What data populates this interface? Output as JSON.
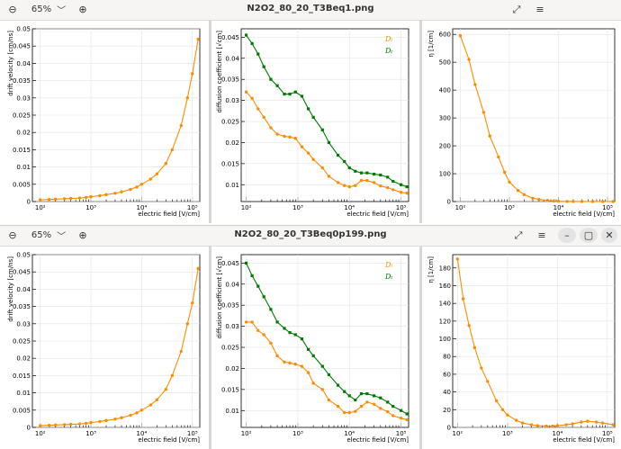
{
  "windows": [
    {
      "title": "N2O2_80_20_T3Beq1.png",
      "zoom": "65%",
      "controls": [
        "zoom-out",
        "zoom-in",
        "fullscreen",
        "menu"
      ]
    },
    {
      "title": "N2O2_80_20_T3Beq0p199.png",
      "zoom": "65%",
      "controls": [
        "zoom-out",
        "zoom-in",
        "fullscreen",
        "menu",
        "minimize",
        "maximize",
        "close"
      ]
    }
  ],
  "icons": {
    "zoom_out": "⊖",
    "zoom_in": "⊕",
    "fullscreen": "⤢",
    "menu": "≡",
    "chevron": "﹀",
    "minimize": "–",
    "maximize": "▢",
    "close": "✕"
  },
  "colors": {
    "orange": "#ff8c00",
    "green": "#007a00"
  },
  "chart_data": [
    {
      "window": 1,
      "type": "line",
      "xscale": "log",
      "xlabel": "electric field [V/cm]",
      "ylabel": "drift velocity [cm/ns]",
      "xlim": [
        70,
        140000
      ],
      "ylim": [
        0,
        0.05
      ],
      "xticks": [
        "10²",
        "10³",
        "10⁴",
        "10⁵"
      ],
      "yticks": [
        "0",
        "0.005",
        "0.01",
        "0.015",
        "0.02",
        "0.025",
        "0.03",
        "0.035",
        "0.04",
        "0.045",
        "0.05"
      ],
      "series": [
        {
          "color": "orange",
          "x": [
            100,
            150,
            200,
            300,
            400,
            600,
            800,
            1000,
            1500,
            2000,
            3000,
            4000,
            6000,
            8000,
            10000,
            15000,
            20000,
            30000,
            40000,
            60000,
            80000,
            100000,
            130000
          ],
          "y": [
            0.0005,
            0.0006,
            0.0007,
            0.0008,
            0.0009,
            0.001,
            0.0012,
            0.0014,
            0.0017,
            0.002,
            0.0024,
            0.0028,
            0.0035,
            0.0042,
            0.005,
            0.0065,
            0.008,
            0.011,
            0.015,
            0.022,
            0.03,
            0.037,
            0.047
          ]
        }
      ]
    },
    {
      "window": 1,
      "type": "line",
      "xscale": "log",
      "xlabel": "electric field [V/cm]",
      "ylabel": "diffusion coefficient [√cm]",
      "xlim": [
        80,
        140000
      ],
      "ylim": [
        0.006,
        0.047
      ],
      "xticks": [
        "10²",
        "10³",
        "10⁴",
        "10⁵"
      ],
      "yticks": [
        "0.01",
        "0.015",
        "0.02",
        "0.025",
        "0.03",
        "0.035",
        "0.04",
        "0.045"
      ],
      "legend": [
        "Dₗ",
        "Dₜ"
      ],
      "series": [
        {
          "name": "Dₗ",
          "color": "orange",
          "x": [
            100,
            130,
            170,
            220,
            300,
            400,
            550,
            700,
            900,
            1200,
            1600,
            2000,
            3000,
            4000,
            6000,
            8000,
            10000,
            13000,
            17000,
            22000,
            30000,
            40000,
            55000,
            70000,
            100000,
            130000
          ],
          "y": [
            0.032,
            0.0305,
            0.028,
            0.026,
            0.0235,
            0.022,
            0.0215,
            0.0213,
            0.021,
            0.019,
            0.0175,
            0.016,
            0.014,
            0.012,
            0.0105,
            0.0098,
            0.0095,
            0.0098,
            0.011,
            0.011,
            0.0105,
            0.0097,
            0.0093,
            0.0088,
            0.0082,
            0.008
          ]
        },
        {
          "name": "Dₜ",
          "color": "green",
          "x": [
            100,
            130,
            170,
            220,
            300,
            400,
            550,
            700,
            900,
            1200,
            1600,
            2000,
            3000,
            4000,
            6000,
            8000,
            10000,
            13000,
            17000,
            22000,
            30000,
            40000,
            55000,
            70000,
            100000,
            130000
          ],
          "y": [
            0.0455,
            0.0435,
            0.041,
            0.038,
            0.035,
            0.0335,
            0.0315,
            0.0315,
            0.032,
            0.031,
            0.028,
            0.026,
            0.023,
            0.02,
            0.017,
            0.0155,
            0.014,
            0.0132,
            0.0128,
            0.0128,
            0.0125,
            0.0123,
            0.0118,
            0.0108,
            0.01,
            0.0095
          ]
        }
      ]
    },
    {
      "window": 1,
      "type": "line",
      "xscale": "log",
      "xlabel": "electric field [V/cm]",
      "ylabel": "η [1/cm]",
      "xlim": [
        70,
        140000
      ],
      "ylim": [
        0,
        620
      ],
      "xticks": [
        "10²",
        "10³",
        "10⁴",
        "10⁵"
      ],
      "yticks": [
        "0",
        "100",
        "200",
        "300",
        "400",
        "500",
        "600"
      ],
      "series": [
        {
          "color": "orange",
          "x": [
            100,
            150,
            200,
            300,
            400,
            600,
            800,
            1000,
            1500,
            2000,
            3000,
            4000,
            6000,
            8000,
            10000,
            15000,
            20000,
            30000,
            50000,
            80000,
            130000
          ],
          "y": [
            595,
            510,
            420,
            320,
            235,
            160,
            105,
            70,
            40,
            25,
            12,
            8,
            4,
            2,
            1,
            0.5,
            0.3,
            0.2,
            0.1,
            0.1,
            0.1
          ]
        }
      ]
    },
    {
      "window": 2,
      "type": "line",
      "xscale": "log",
      "xlabel": "electric field [V/cm]",
      "ylabel": "drift velocity [cm/ns]",
      "xlim": [
        70,
        140000
      ],
      "ylim": [
        0,
        0.05
      ],
      "xticks": [
        "10²",
        "10³",
        "10⁴",
        "10⁵"
      ],
      "yticks": [
        "0",
        "0.005",
        "0.01",
        "0.015",
        "0.02",
        "0.025",
        "0.03",
        "0.035",
        "0.04",
        "0.045",
        "0.05"
      ],
      "series": [
        {
          "color": "orange",
          "x": [
            100,
            150,
            200,
            300,
            400,
            600,
            800,
            1000,
            1500,
            2000,
            3000,
            4000,
            6000,
            8000,
            10000,
            15000,
            20000,
            30000,
            40000,
            60000,
            80000,
            100000,
            130000
          ],
          "y": [
            0.0005,
            0.0006,
            0.0007,
            0.0008,
            0.0009,
            0.001,
            0.0012,
            0.0014,
            0.0017,
            0.002,
            0.0024,
            0.0028,
            0.0035,
            0.0042,
            0.005,
            0.0065,
            0.008,
            0.011,
            0.015,
            0.022,
            0.03,
            0.036,
            0.046
          ]
        }
      ]
    },
    {
      "window": 2,
      "type": "line",
      "xscale": "log",
      "xlabel": "electric field [V/cm]",
      "ylabel": "diffusion coefficient [√cm]",
      "xlim": [
        80,
        140000
      ],
      "ylim": [
        0.006,
        0.047
      ],
      "xticks": [
        "10²",
        "10³",
        "10⁴",
        "10⁵"
      ],
      "yticks": [
        "0.01",
        "0.015",
        "0.02",
        "0.025",
        "0.03",
        "0.035",
        "0.04",
        "0.045"
      ],
      "legend": [
        "Dₗ",
        "Dₜ"
      ],
      "series": [
        {
          "name": "Dₗ",
          "color": "orange",
          "x": [
            100,
            130,
            170,
            220,
            300,
            400,
            550,
            700,
            900,
            1200,
            1600,
            2000,
            3000,
            4000,
            6000,
            8000,
            10000,
            13000,
            17000,
            22000,
            30000,
            40000,
            55000,
            70000,
            100000,
            130000
          ],
          "y": [
            0.031,
            0.031,
            0.029,
            0.028,
            0.026,
            0.023,
            0.0215,
            0.0213,
            0.021,
            0.0205,
            0.019,
            0.0165,
            0.015,
            0.0125,
            0.011,
            0.0095,
            0.0095,
            0.0098,
            0.011,
            0.012,
            0.0115,
            0.0105,
            0.0097,
            0.0088,
            0.0082,
            0.0078
          ]
        },
        {
          "name": "Dₜ",
          "color": "green",
          "x": [
            100,
            130,
            170,
            220,
            300,
            400,
            550,
            700,
            900,
            1200,
            1600,
            2000,
            3000,
            4000,
            6000,
            8000,
            10000,
            13000,
            17000,
            22000,
            30000,
            40000,
            55000,
            70000,
            100000,
            130000
          ],
          "y": [
            0.045,
            0.042,
            0.0395,
            0.037,
            0.034,
            0.031,
            0.0295,
            0.0285,
            0.028,
            0.027,
            0.0245,
            0.023,
            0.0205,
            0.0185,
            0.016,
            0.0145,
            0.0135,
            0.0125,
            0.014,
            0.014,
            0.0135,
            0.013,
            0.012,
            0.011,
            0.01,
            0.0092
          ]
        }
      ]
    },
    {
      "window": 2,
      "type": "line",
      "xscale": "log",
      "xlabel": "electric field [V/cm]",
      "ylabel": "η [1/cm]",
      "xlim": [
        80,
        140000
      ],
      "ylim": [
        0,
        195
      ],
      "xticks": [
        "10²",
        "10³",
        "10⁴",
        "10⁵"
      ],
      "yticks": [
        "0",
        "20",
        "40",
        "60",
        "80",
        "100",
        "120",
        "140",
        "160",
        "180"
      ],
      "series": [
        {
          "color": "orange",
          "x": [
            100,
            130,
            170,
            220,
            300,
            400,
            600,
            800,
            1000,
            1500,
            2000,
            3000,
            4000,
            6000,
            8000,
            10000,
            15000,
            20000,
            30000,
            40000,
            60000,
            80000,
            130000
          ],
          "y": [
            190,
            145,
            115,
            90,
            67,
            52,
            30,
            20,
            14,
            8,
            5,
            3,
            2,
            1.5,
            1.5,
            2,
            3,
            4,
            6,
            7,
            6,
            5,
            3
          ]
        }
      ]
    }
  ]
}
